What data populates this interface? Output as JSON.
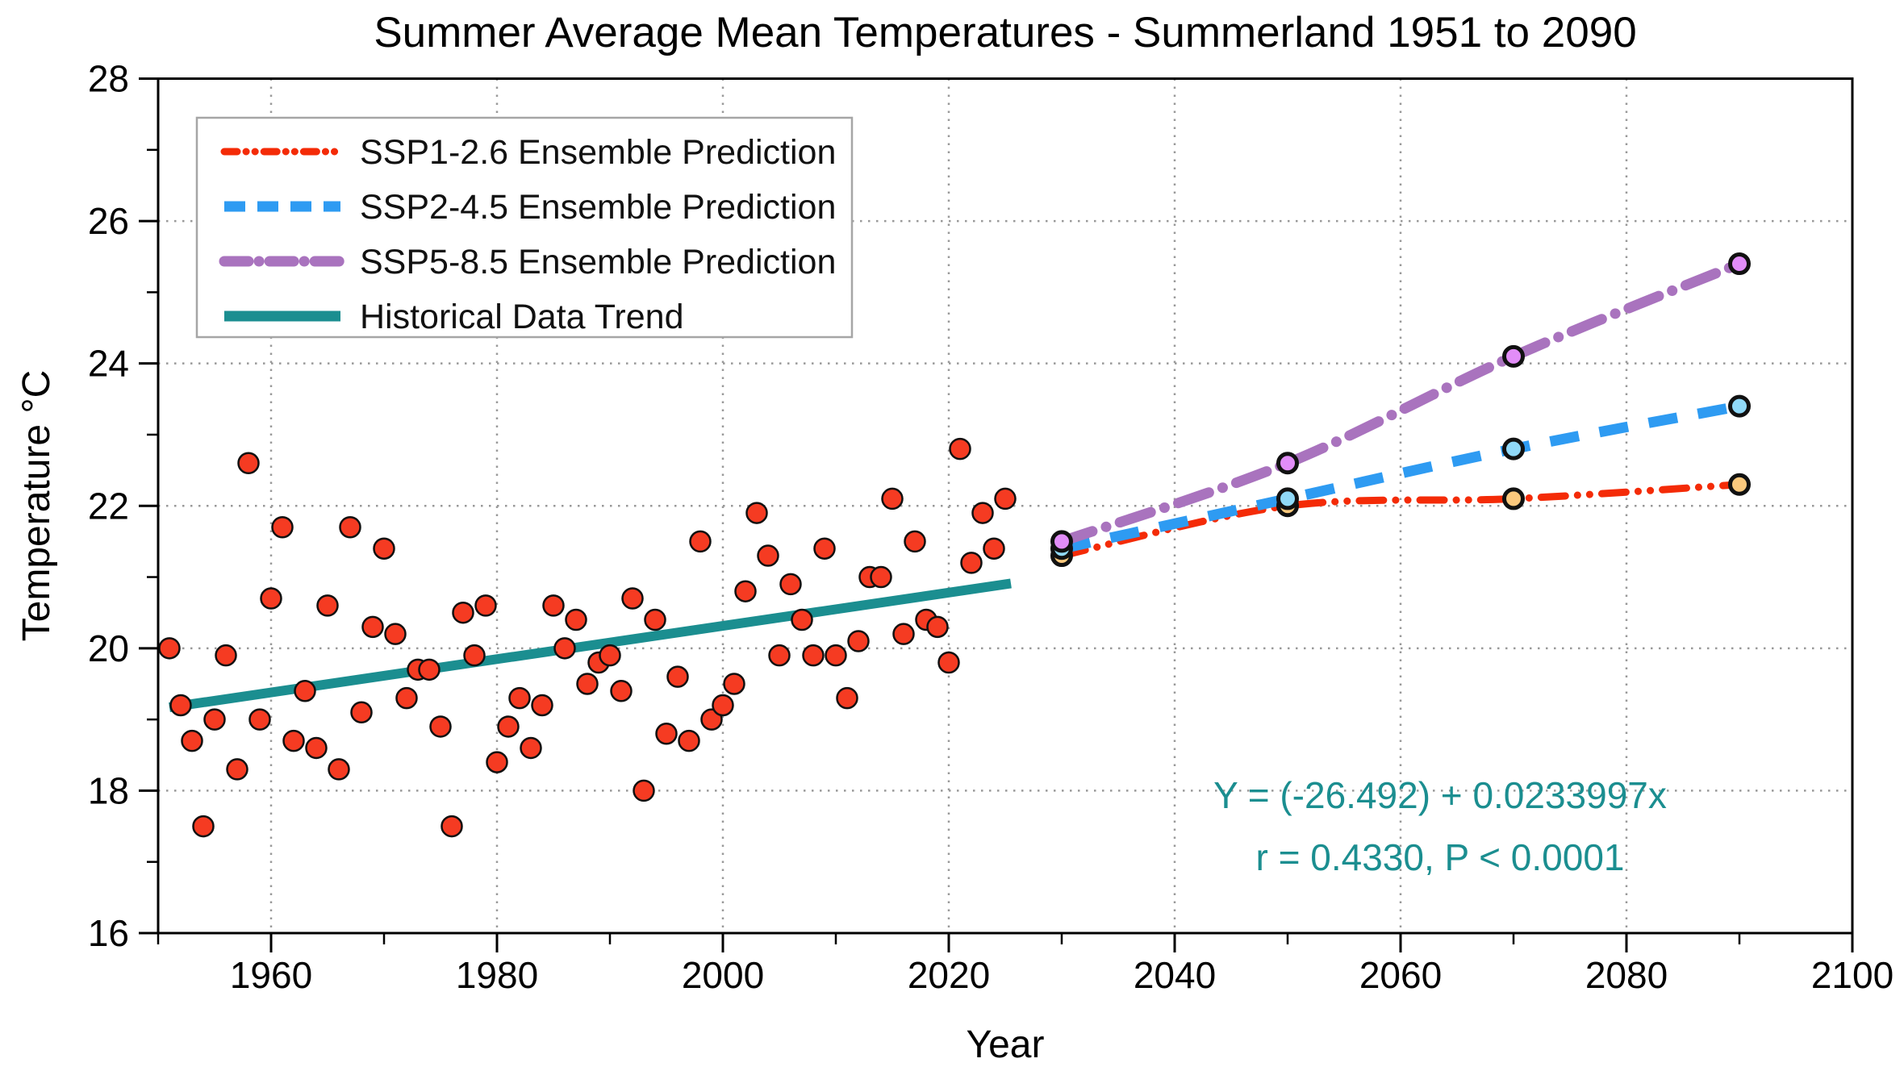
{
  "page": {
    "background": "#ffffff"
  },
  "chart_data": {
    "type": "scatter",
    "title": "Summer Average Mean Temperatures - Summerland 1951 to 2090",
    "xlabel": "Year",
    "ylabel": "Temperature °C",
    "xlim": [
      1950,
      2100
    ],
    "ylim": [
      16,
      28
    ],
    "x_major_ticks": [
      1960,
      1980,
      2000,
      2020,
      2040,
      2060,
      2080,
      2100
    ],
    "x_minor_ticks": [
      1950,
      1970,
      1990,
      2010,
      2030,
      2050,
      2070,
      2090
    ],
    "y_major_ticks": [
      16,
      18,
      20,
      22,
      24,
      26,
      28
    ],
    "y_minor_ticks": [
      17,
      19,
      21,
      23,
      25,
      27
    ],
    "grid": {
      "show": true,
      "color": "#999999",
      "style": "dotted"
    },
    "historical_scatter": {
      "label": "Historical Data",
      "marker_fill": "#f53b22",
      "marker_edge": "#111111",
      "years": [
        1951,
        1952,
        1953,
        1954,
        1955,
        1956,
        1957,
        1958,
        1959,
        1960,
        1961,
        1962,
        1963,
        1964,
        1965,
        1966,
        1967,
        1968,
        1969,
        1970,
        1971,
        1972,
        1973,
        1974,
        1975,
        1976,
        1977,
        1978,
        1979,
        1980,
        1981,
        1982,
        1983,
        1984,
        1985,
        1986,
        1987,
        1988,
        1989,
        1990,
        1991,
        1992,
        1993,
        1994,
        1995,
        1996,
        1997,
        1998,
        1999,
        2000,
        2001,
        2002,
        2003,
        2004,
        2005,
        2006,
        2007,
        2008,
        2009,
        2010,
        2011,
        2012,
        2013,
        2014,
        2015,
        2016,
        2017,
        2018,
        2019,
        2020,
        2021,
        2022,
        2023,
        2024,
        2025
      ],
      "temps": [
        20.0,
        19.2,
        18.7,
        17.5,
        19.0,
        19.9,
        18.3,
        22.6,
        19.0,
        20.7,
        21.7,
        18.7,
        19.4,
        18.6,
        20.6,
        18.3,
        21.7,
        19.1,
        20.3,
        21.4,
        20.2,
        19.3,
        19.7,
        19.7,
        18.9,
        17.5,
        20.5,
        19.9,
        20.6,
        18.4,
        18.9,
        19.3,
        18.6,
        19.2,
        20.6,
        20.0,
        20.4,
        19.5,
        19.8,
        19.9,
        19.4,
        20.7,
        18.0,
        20.4,
        18.8,
        19.6,
        18.7,
        21.5,
        19.0,
        19.2,
        19.5,
        20.8,
        21.9,
        21.3,
        19.9,
        20.9,
        20.4,
        19.9,
        21.4,
        19.9,
        19.3,
        20.1,
        21.0,
        21.0,
        22.1,
        20.2,
        21.5,
        20.4,
        20.3,
        19.8,
        22.8,
        21.2,
        21.9,
        21.4,
        22.1
      ]
    },
    "trend_line": {
      "label": "Historical Data Trend",
      "color": "#1b8e90",
      "x": [
        1951,
        2025.5
      ],
      "y": [
        19.17,
        20.91
      ]
    },
    "predictions": [
      {
        "label": "SSP1-2.6 Ensemble Prediction",
        "line_color": "#f42b07",
        "marker_fill": "#fbc97d",
        "dash": "dash-dot-dot",
        "years": [
          2030,
          2050,
          2070,
          2090
        ],
        "temps": [
          21.3,
          22.0,
          22.1,
          22.3
        ]
      },
      {
        "label": "SSP2-4.5 Ensemble Prediction",
        "line_color": "#2e9bf2",
        "marker_fill": "#90d9f8",
        "dash": "dashed",
        "years": [
          2030,
          2050,
          2070,
          2090
        ],
        "temps": [
          21.4,
          22.1,
          22.8,
          23.4
        ]
      },
      {
        "label": "SSP5-8.5 Ensemble Prediction",
        "line_color": "#a973be",
        "marker_fill": "#e28df8",
        "dash": "dash-dot",
        "years": [
          2030,
          2050,
          2070,
          2090
        ],
        "temps": [
          21.5,
          22.6,
          24.1,
          25.4
        ]
      }
    ],
    "legend": {
      "position": "upper-left",
      "border_color": "#a6a6a6",
      "entries": [
        "SSP1-2.6 Ensemble Prediction",
        "SSP2-4.5 Ensemble Prediction",
        "SSP5-8.5 Ensemble Prediction",
        "Historical Data Trend"
      ]
    },
    "annotation": {
      "line1": "Y = (-26.492) + 0.0233997x",
      "line2": "r = 0.4330, P < 0.0001",
      "color": "#1b8e90"
    }
  }
}
